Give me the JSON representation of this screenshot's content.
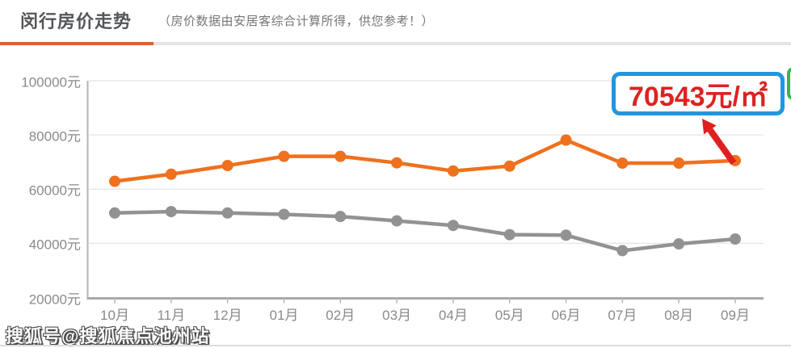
{
  "header": {
    "title": "闵行房价走势",
    "note": "（房价数据由安居客综合计算所得，供您参考！）"
  },
  "callout": {
    "value_label": "70543元/㎡"
  },
  "watermark": "搜狐号@搜狐焦点池州站",
  "colors": {
    "accent_orange": "#dc5f38",
    "series_orange": "#ef701d",
    "series_gray": "#929292",
    "callout_border": "#2196e0",
    "callout_text": "#dd2222",
    "arrow_red": "#e02020",
    "green_fragment": "#3ab54a",
    "gridline": "#e8e8e8",
    "axis": "#a8a8a8",
    "axis_text": "#8a8a8a"
  },
  "chart_data": {
    "type": "line",
    "title": "闵行房价走势",
    "categories": [
      "10月",
      "11月",
      "12月",
      "01月",
      "02月",
      "03月",
      "04月",
      "05月",
      "06月",
      "07月",
      "08月",
      "09月"
    ],
    "series": [
      {
        "name": "orange",
        "color": "#ef701d",
        "values": [
          62900,
          65500,
          68700,
          72100,
          72100,
          69700,
          66700,
          68500,
          78100,
          69600,
          69600,
          70543
        ]
      },
      {
        "name": "gray",
        "color": "#929292",
        "values": [
          51200,
          51700,
          51200,
          50700,
          49900,
          48300,
          46600,
          43200,
          43000,
          37300,
          39800,
          41600
        ]
      }
    ],
    "ylim": [
      20000,
      100000
    ],
    "y_ticks": [
      100000,
      80000,
      60000,
      40000,
      20000
    ],
    "y_tick_suffix": "元",
    "xlabel": "",
    "ylabel": "",
    "grid": true,
    "legend": "none",
    "annotation": {
      "text": "70543元/㎡",
      "points_to": {
        "category": "09月",
        "series": "orange",
        "value": 70543
      }
    }
  }
}
